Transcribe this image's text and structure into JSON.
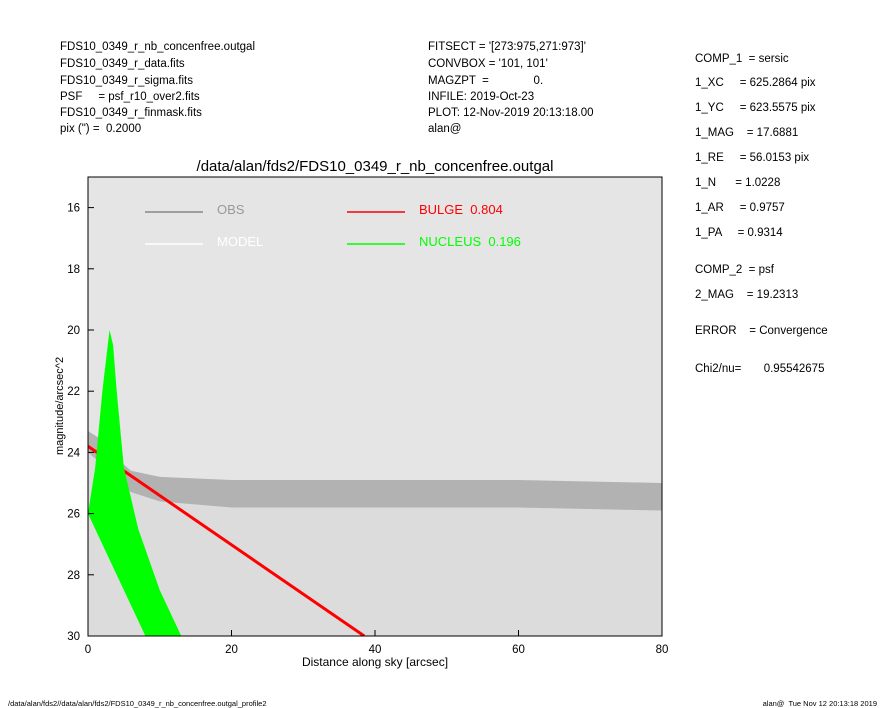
{
  "header_left": [
    "FDS10_0349_r_nb_concenfree.outgal",
    "FDS10_0349_r_data.fits",
    "FDS10_0349_r_sigma.fits",
    "PSF     = psf_r10_over2.fits",
    "FDS10_0349_r_finmask.fits",
    "pix (\") =  0.2000"
  ],
  "header_mid": [
    "FITSECT = '[273:975,271:973]'",
    "CONVBOX = '101, 101'",
    "MAGZPT  =              0.",
    "INFILE: 2019-Oct-23",
    "PLOT: 12-Nov-2019 20:13:18.00",
    "alan@"
  ],
  "params": [
    "COMP_1  = sersic",
    "1_XC     = 625.2864 pix",
    "1_YC     = 623.5575 pix",
    "1_MAG    = 17.6881",
    "1_RE     = 56.0153 pix",
    "1_N      = 1.0228",
    "1_AR     = 0.9757",
    "1_PA     = 0.9314",
    "COMP_2  = psf",
    "2_MAG    = 19.2313",
    "ERROR    = Convergence",
    "Chi2/nu=       0.95542675"
  ],
  "footer_left": "/data/alan/fds2//data/alan/fds2/FDS10_0349_r_nb_concenfree.outgal_profile2",
  "footer_right": "alan@  Tue Nov 12 20:13:18 2019",
  "chart_data": {
    "type": "line",
    "title": "/data/alan/fds2/FDS10_0349_r_nb_concenfree.outgal",
    "xlabel": "Distance along sky [arcsec]",
    "ylabel": "magnitude/arcsec^2",
    "xlim": [
      0,
      80
    ],
    "xticks": [
      0,
      20,
      40,
      60,
      80
    ],
    "ylim": [
      30,
      15
    ],
    "yticks": [
      16,
      18,
      20,
      22,
      24,
      26,
      28,
      30
    ],
    "series": [
      {
        "name": "OBS",
        "color": "#888888",
        "style": "area",
        "x": [
          0,
          2,
          4,
          6,
          10,
          20,
          40,
          60,
          80
        ],
        "values": [
          23.3,
          23.6,
          24.2,
          24.6,
          24.8,
          24.9,
          24.9,
          24.9,
          25.0
        ]
      },
      {
        "name": "MODEL",
        "color": "#ffffff",
        "style": "area",
        "x": [
          0,
          2,
          4,
          6,
          10,
          20,
          40,
          60,
          80
        ],
        "values": [
          24.0,
          24.4,
          24.9,
          25.3,
          25.6,
          25.8,
          25.8,
          25.8,
          25.9
        ]
      },
      {
        "name": "BULGE  0.804",
        "color": "#ff0000",
        "style": "line",
        "x": [
          0,
          38.5
        ],
        "values": [
          23.8,
          30
        ]
      },
      {
        "name": "NUCLEUS  0.196",
        "color": "#00ff00",
        "style": "polygon",
        "x": [
          0,
          1,
          2,
          3,
          3.5,
          4,
          5,
          7,
          10,
          13,
          8,
          5,
          2,
          0
        ],
        "values": [
          26,
          24.5,
          22,
          20,
          20.5,
          22,
          24.5,
          26.5,
          28.5,
          30,
          30,
          28.5,
          27,
          26
        ]
      }
    ]
  }
}
